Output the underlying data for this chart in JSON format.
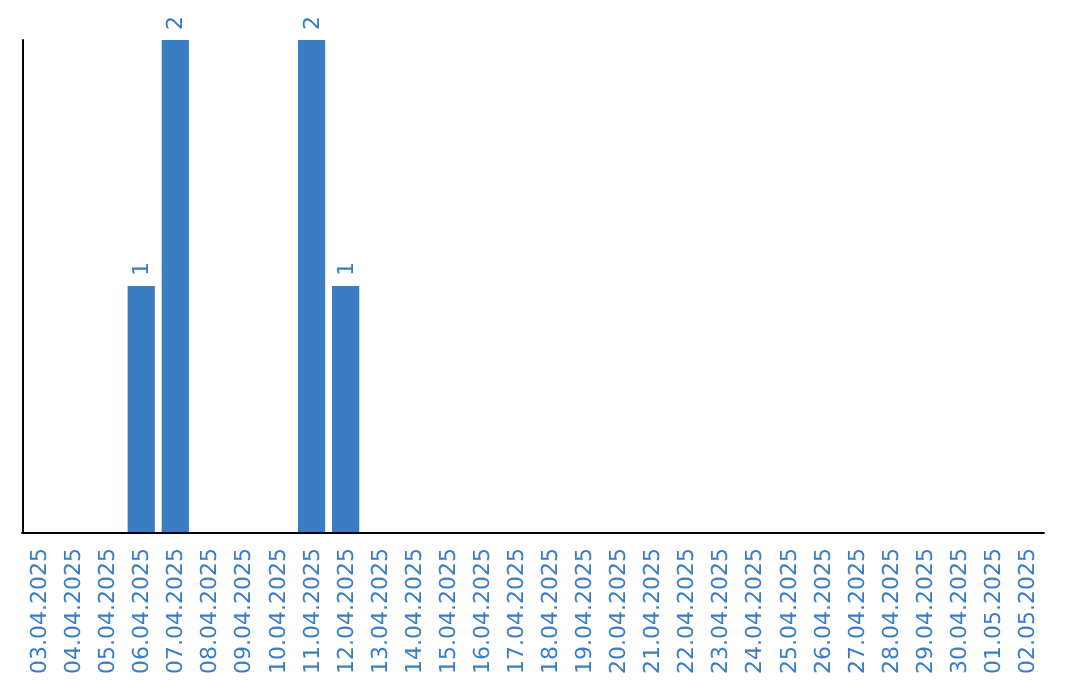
{
  "chart_data": {
    "type": "bar",
    "categories": [
      "03.04.2025",
      "04.04.2025",
      "05.04.2025",
      "06.04.2025",
      "07.04.2025",
      "08.04.2025",
      "09.04.2025",
      "10.04.2025",
      "11.04.2025",
      "12.04.2025",
      "13.04.2025",
      "14.04.2025",
      "15.04.2025",
      "16.04.2025",
      "17.04.2025",
      "18.04.2025",
      "19.04.2025",
      "20.04.2025",
      "21.04.2025",
      "22.04.2025",
      "23.04.2025",
      "24.04.2025",
      "25.04.2025",
      "26.04.2025",
      "27.04.2025",
      "28.04.2025",
      "29.04.2025",
      "30.04.2025",
      "01.05.2025",
      "02.05.2025"
    ],
    "values": [
      0,
      0,
      0,
      1,
      2,
      0,
      0,
      0,
      2,
      1,
      0,
      0,
      0,
      0,
      0,
      0,
      0,
      0,
      0,
      0,
      0,
      0,
      0,
      0,
      0,
      0,
      0,
      0,
      0,
      0
    ],
    "value_labels": [
      null,
      null,
      null,
      "1",
      "2",
      null,
      null,
      null,
      "2",
      "1",
      null,
      null,
      null,
      null,
      null,
      null,
      null,
      null,
      null,
      null,
      null,
      null,
      null,
      null,
      null,
      null,
      null,
      null,
      null,
      null
    ],
    "color": "#3a7dc4",
    "tick_labels": "x"
  }
}
